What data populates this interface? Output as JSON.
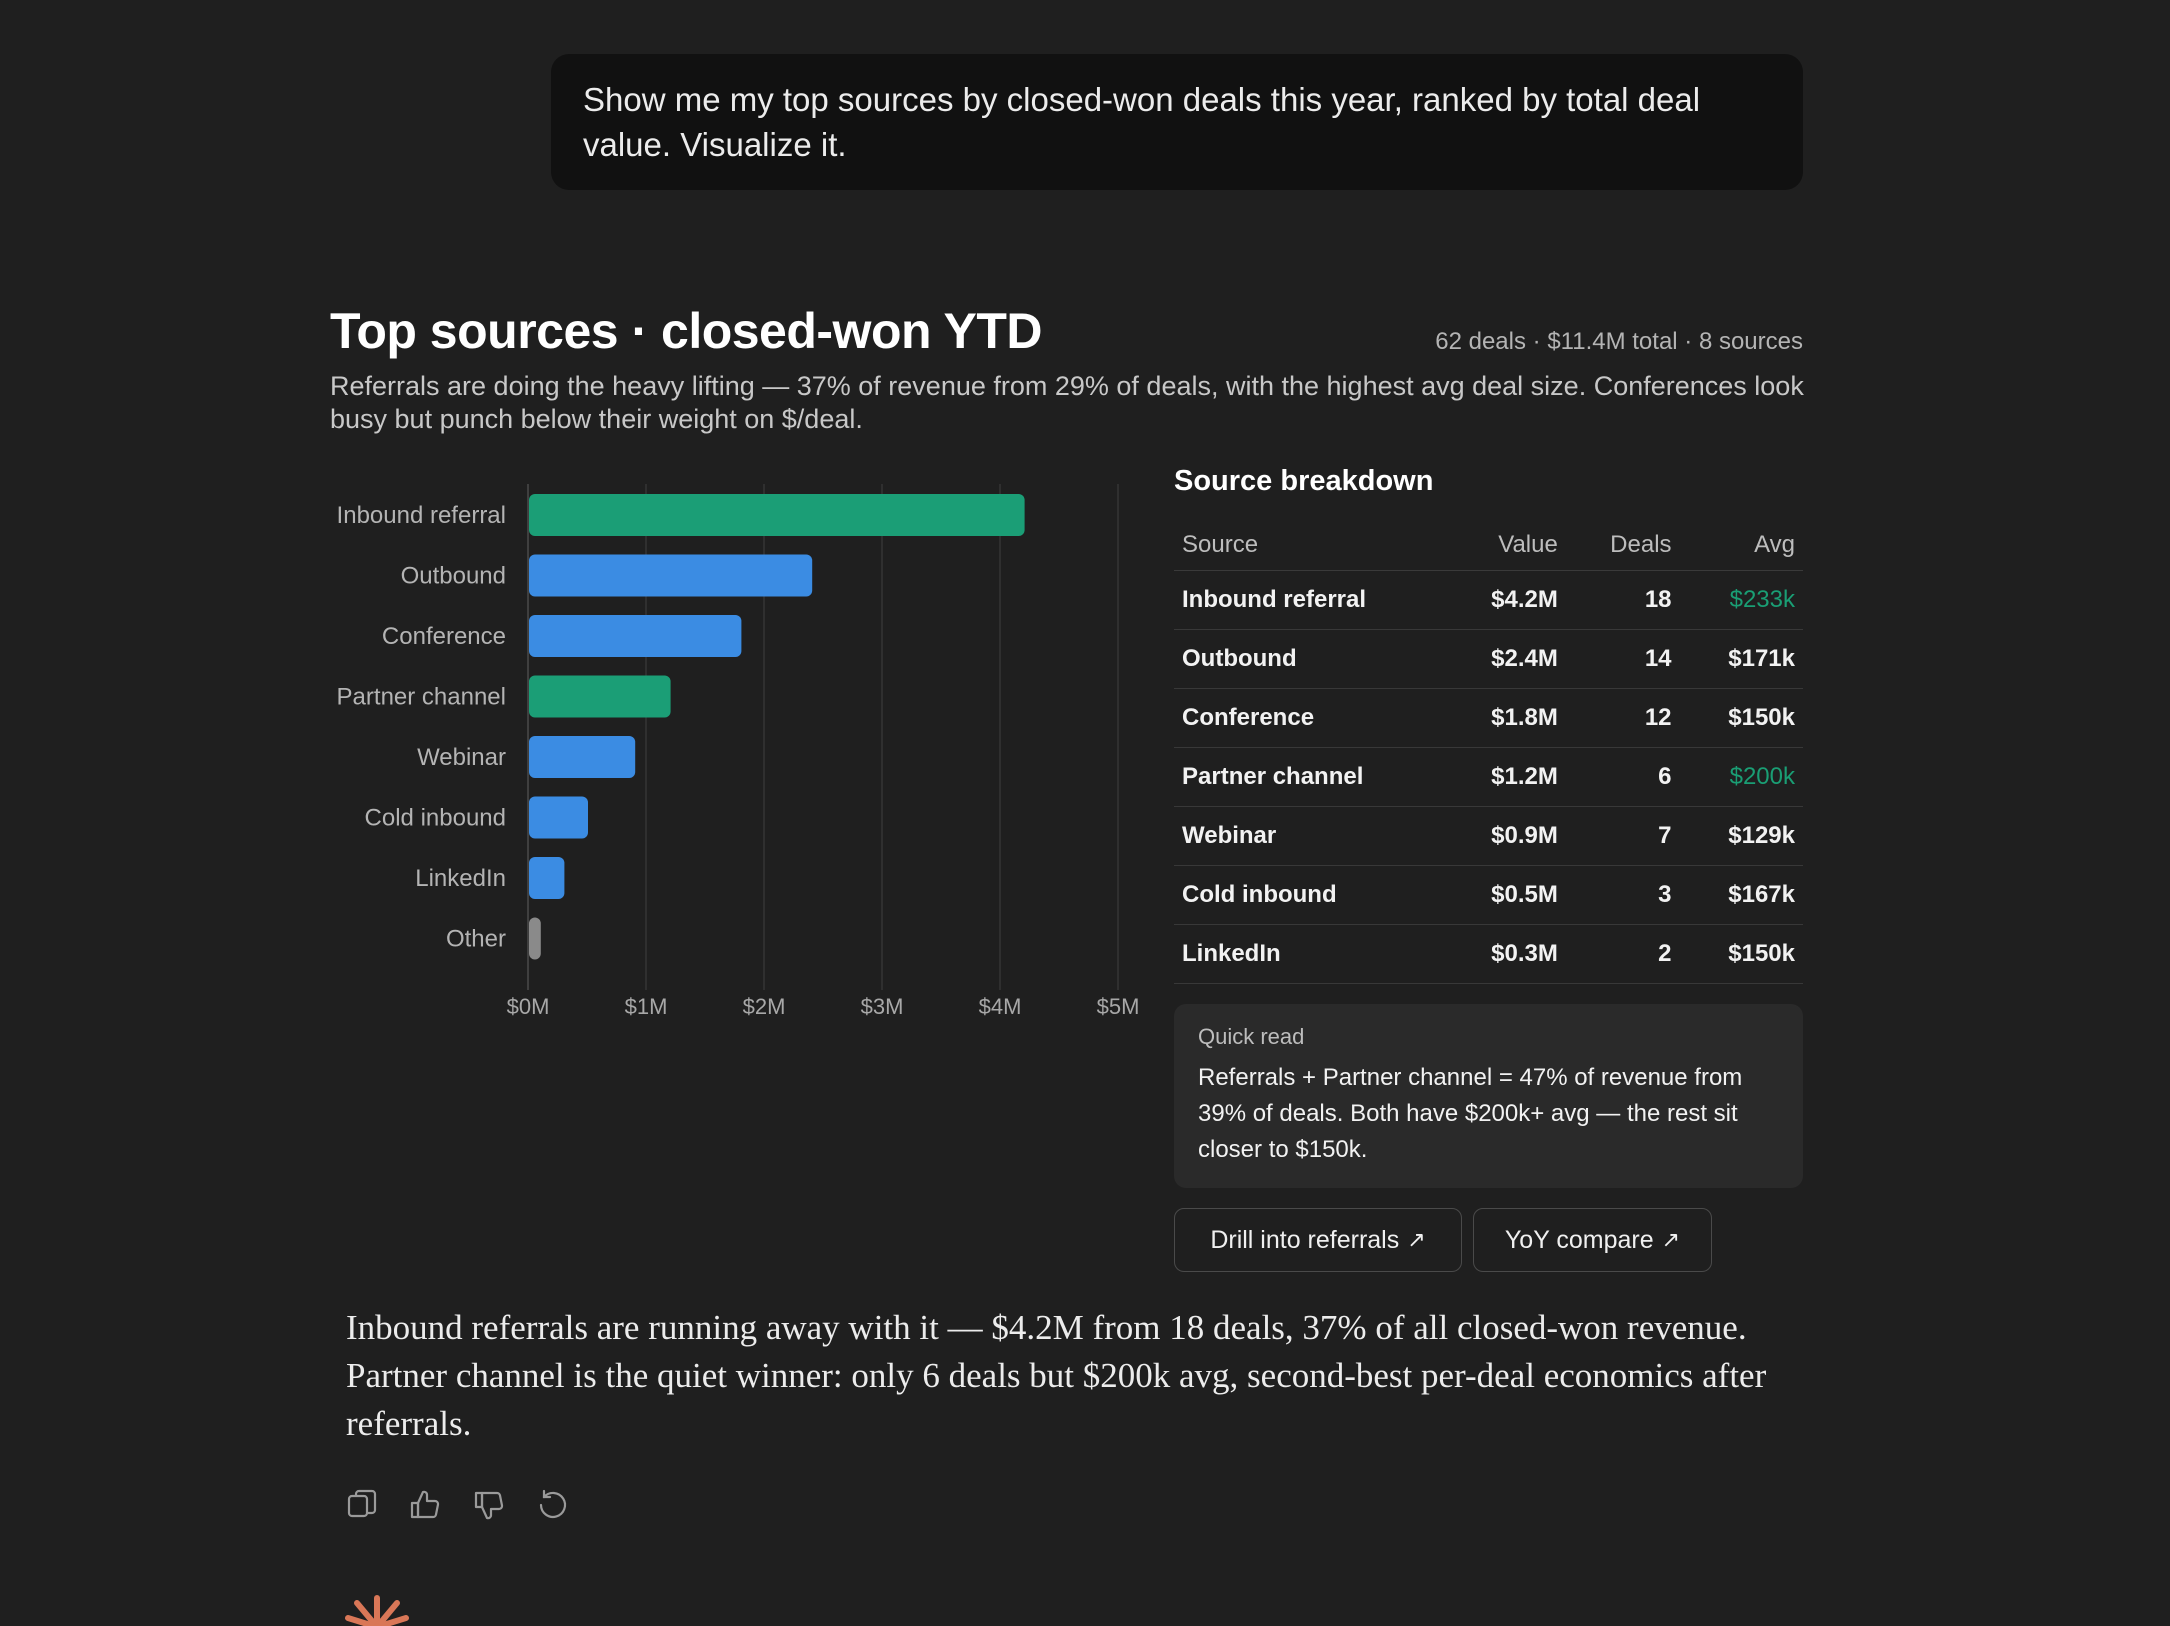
{
  "user_message": "Show me my top sources by closed-won deals this year, ranked by total deal value. Visualize it.",
  "widget": {
    "title": "Top sources · closed-won YTD",
    "meta": "62 deals · $11.4M total · 8 sources",
    "subtitle": "Referrals are doing the heavy lifting — 37% of revenue from 29% of deals, with the highest avg deal size. Conferences look busy but punch below their weight on $/deal."
  },
  "chart_data": {
    "type": "bar",
    "orientation": "horizontal",
    "categories": [
      "Inbound referral",
      "Outbound",
      "Conference",
      "Partner channel",
      "Webinar",
      "Cold inbound",
      "LinkedIn",
      "Other"
    ],
    "values": [
      4.2,
      2.4,
      1.8,
      1.2,
      0.9,
      0.5,
      0.3,
      0.1
    ],
    "colors": [
      "#1b9e76",
      "#3b8ce3",
      "#3b8ce3",
      "#1b9e76",
      "#3b8ce3",
      "#3b8ce3",
      "#3b8ce3",
      "#8a8a8a"
    ],
    "xlim": [
      0,
      5
    ],
    "xticks": [
      0,
      1,
      2,
      3,
      4,
      5
    ],
    "xtick_labels": [
      "$0M",
      "$1M",
      "$2M",
      "$3M",
      "$4M",
      "$5M"
    ],
    "xlabel": "",
    "ylabel": "",
    "grid": true
  },
  "breakdown": {
    "title": "Source breakdown",
    "headers": {
      "source": "Source",
      "value": "Value",
      "deals": "Deals",
      "avg": "Avg"
    },
    "rows": [
      {
        "source": "Inbound referral",
        "value": "$4.2M",
        "deals": "18",
        "avg": "$233k",
        "highlight": true
      },
      {
        "source": "Outbound",
        "value": "$2.4M",
        "deals": "14",
        "avg": "$171k",
        "highlight": false
      },
      {
        "source": "Conference",
        "value": "$1.8M",
        "deals": "12",
        "avg": "$150k",
        "highlight": false
      },
      {
        "source": "Partner channel",
        "value": "$1.2M",
        "deals": "6",
        "avg": "$200k",
        "highlight": true
      },
      {
        "source": "Webinar",
        "value": "$0.9M",
        "deals": "7",
        "avg": "$129k",
        "highlight": false
      },
      {
        "source": "Cold inbound",
        "value": "$0.5M",
        "deals": "3",
        "avg": "$167k",
        "highlight": false
      },
      {
        "source": "LinkedIn",
        "value": "$0.3M",
        "deals": "2",
        "avg": "$150k",
        "highlight": false
      }
    ]
  },
  "quick_read": {
    "label": "Quick read",
    "text": "Referrals + Partner channel = 47% of revenue from 39% of deals. Both have $200k+ avg — the rest sit closer to $150k."
  },
  "actions": {
    "drill_label": "Drill into referrals",
    "yoy_label": "YoY compare",
    "arrow": "↗"
  },
  "assistant_message": "Inbound referrals are running away with it — $4.2M from 18 deals, 37% of all closed-won revenue. Partner channel is the quiet winner: only 6 deals but $200k avg, second-best per-deal economics after referrals.",
  "colors": {
    "background": "#1f1f1f",
    "referral_green": "#1b9e76",
    "bar_blue": "#3b8ce3",
    "other_gray": "#8a8a8a",
    "highlight_text": "#1a9e74",
    "brand": "#d97757"
  },
  "icons": {
    "copy": "copy-icon",
    "thumbs_up": "thumbs-up-icon",
    "thumbs_down": "thumbs-down-icon",
    "retry": "retry-icon",
    "brand": "brand-spark-icon"
  }
}
